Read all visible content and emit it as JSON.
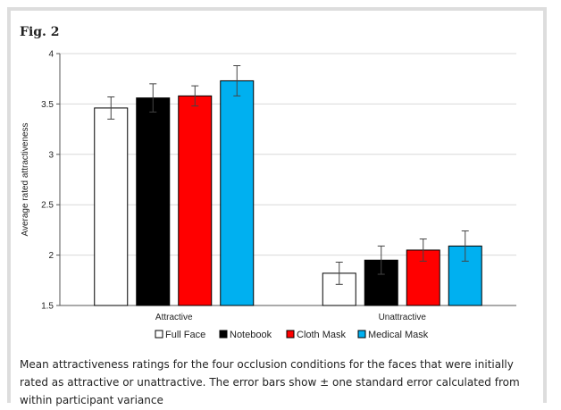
{
  "figure": {
    "label": "Fig. 2",
    "caption": "Mean attractiveness ratings for the four occlusion conditions for the faces that were initially rated as attractive or unattractive. The error bars show ± one standard error calculated from within participant variance"
  },
  "chart_data": {
    "type": "bar",
    "title": "",
    "xlabel": "",
    "ylabel": "Average rated attractiveness",
    "ylim": [
      1.5,
      4
    ],
    "yticks": [
      "1.5",
      "2",
      "2.5",
      "3",
      "3.5",
      "4"
    ],
    "grid": true,
    "legend_position": "bottom",
    "categories": [
      "Attractive",
      "Unattractive"
    ],
    "series": [
      {
        "name": "Full Face",
        "color": "#ffffff",
        "values": [
          3.46,
          1.82
        ],
        "errors": [
          0.11,
          0.11
        ]
      },
      {
        "name": "Notebook",
        "color": "#000000",
        "values": [
          3.56,
          1.95
        ],
        "errors": [
          0.14,
          0.14
        ]
      },
      {
        "name": "Cloth Mask",
        "color": "#ff0000",
        "values": [
          3.58,
          2.05
        ],
        "errors": [
          0.1,
          0.11
        ]
      },
      {
        "name": "Medical Mask",
        "color": "#00b0f0",
        "values": [
          3.73,
          2.09
        ],
        "errors": [
          0.15,
          0.15
        ]
      }
    ]
  }
}
